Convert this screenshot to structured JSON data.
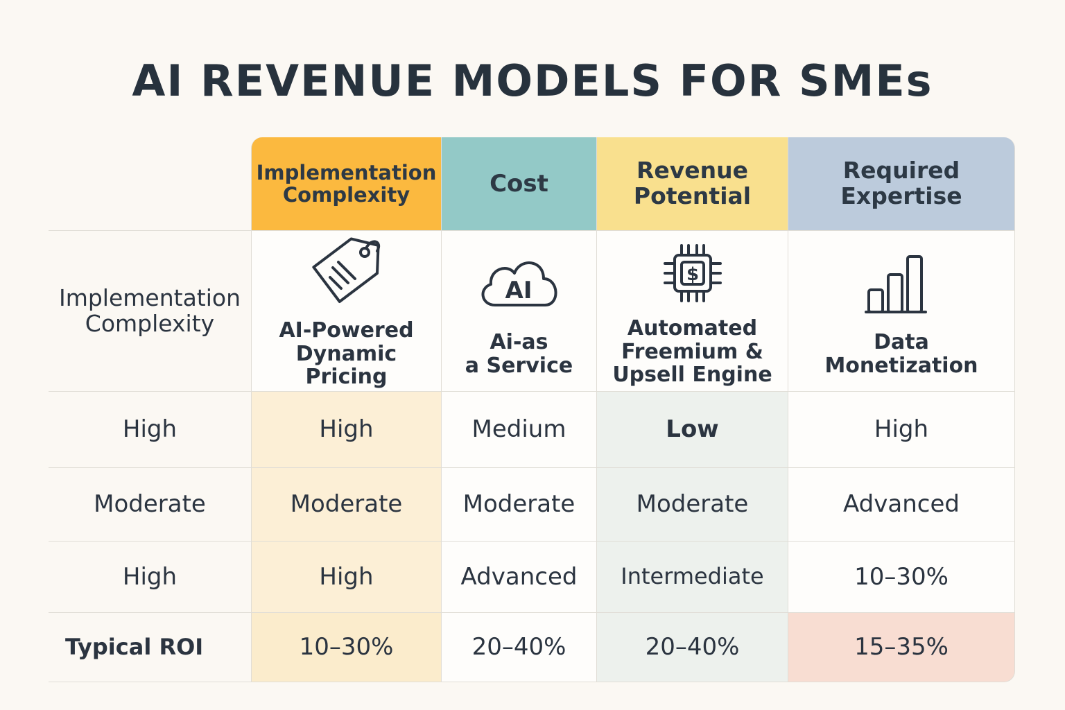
{
  "title": "AI REVENUE MODELS FOR SMEs",
  "columns": [
    {
      "label": "Implementation\nComplexity",
      "color": "#fbb93f"
    },
    {
      "label": "Cost",
      "color": "#93c9c7"
    },
    {
      "label": "Revenue\nPotential",
      "color": "#f9e08e"
    },
    {
      "label": "Required\nExpertise",
      "color": "#bccbdc"
    }
  ],
  "models_row_label": "Implementation\nComplexity",
  "models": [
    {
      "name": "AI-Powered\nDynamic Pricing",
      "icon": "price-tag-icon"
    },
    {
      "name": "Ai-as\na Service",
      "icon": "ai-cloud-icon"
    },
    {
      "name": "Automated\nFreemium &\nUpsell Engine",
      "icon": "dollar-chip-icon"
    },
    {
      "name": "Data\nMonetization",
      "icon": "bar-chart-icon"
    }
  ],
  "ai_icon_text": "AI",
  "dollar_icon_text": "$",
  "rows": [
    {
      "label": "High",
      "values": [
        "High",
        "Medium",
        "Low",
        "High"
      ]
    },
    {
      "label": "Moderate",
      "values": [
        "Moderate",
        "Moderate",
        "Moderate",
        "Advanced"
      ]
    },
    {
      "label": "High",
      "values": [
        "High",
        "Advanced",
        "Intermediate",
        "10–30%"
      ]
    },
    {
      "label": "Typical ROI",
      "values": [
        "10–30%",
        "20–40%",
        "20–40%",
        "15–35%"
      ]
    }
  ]
}
